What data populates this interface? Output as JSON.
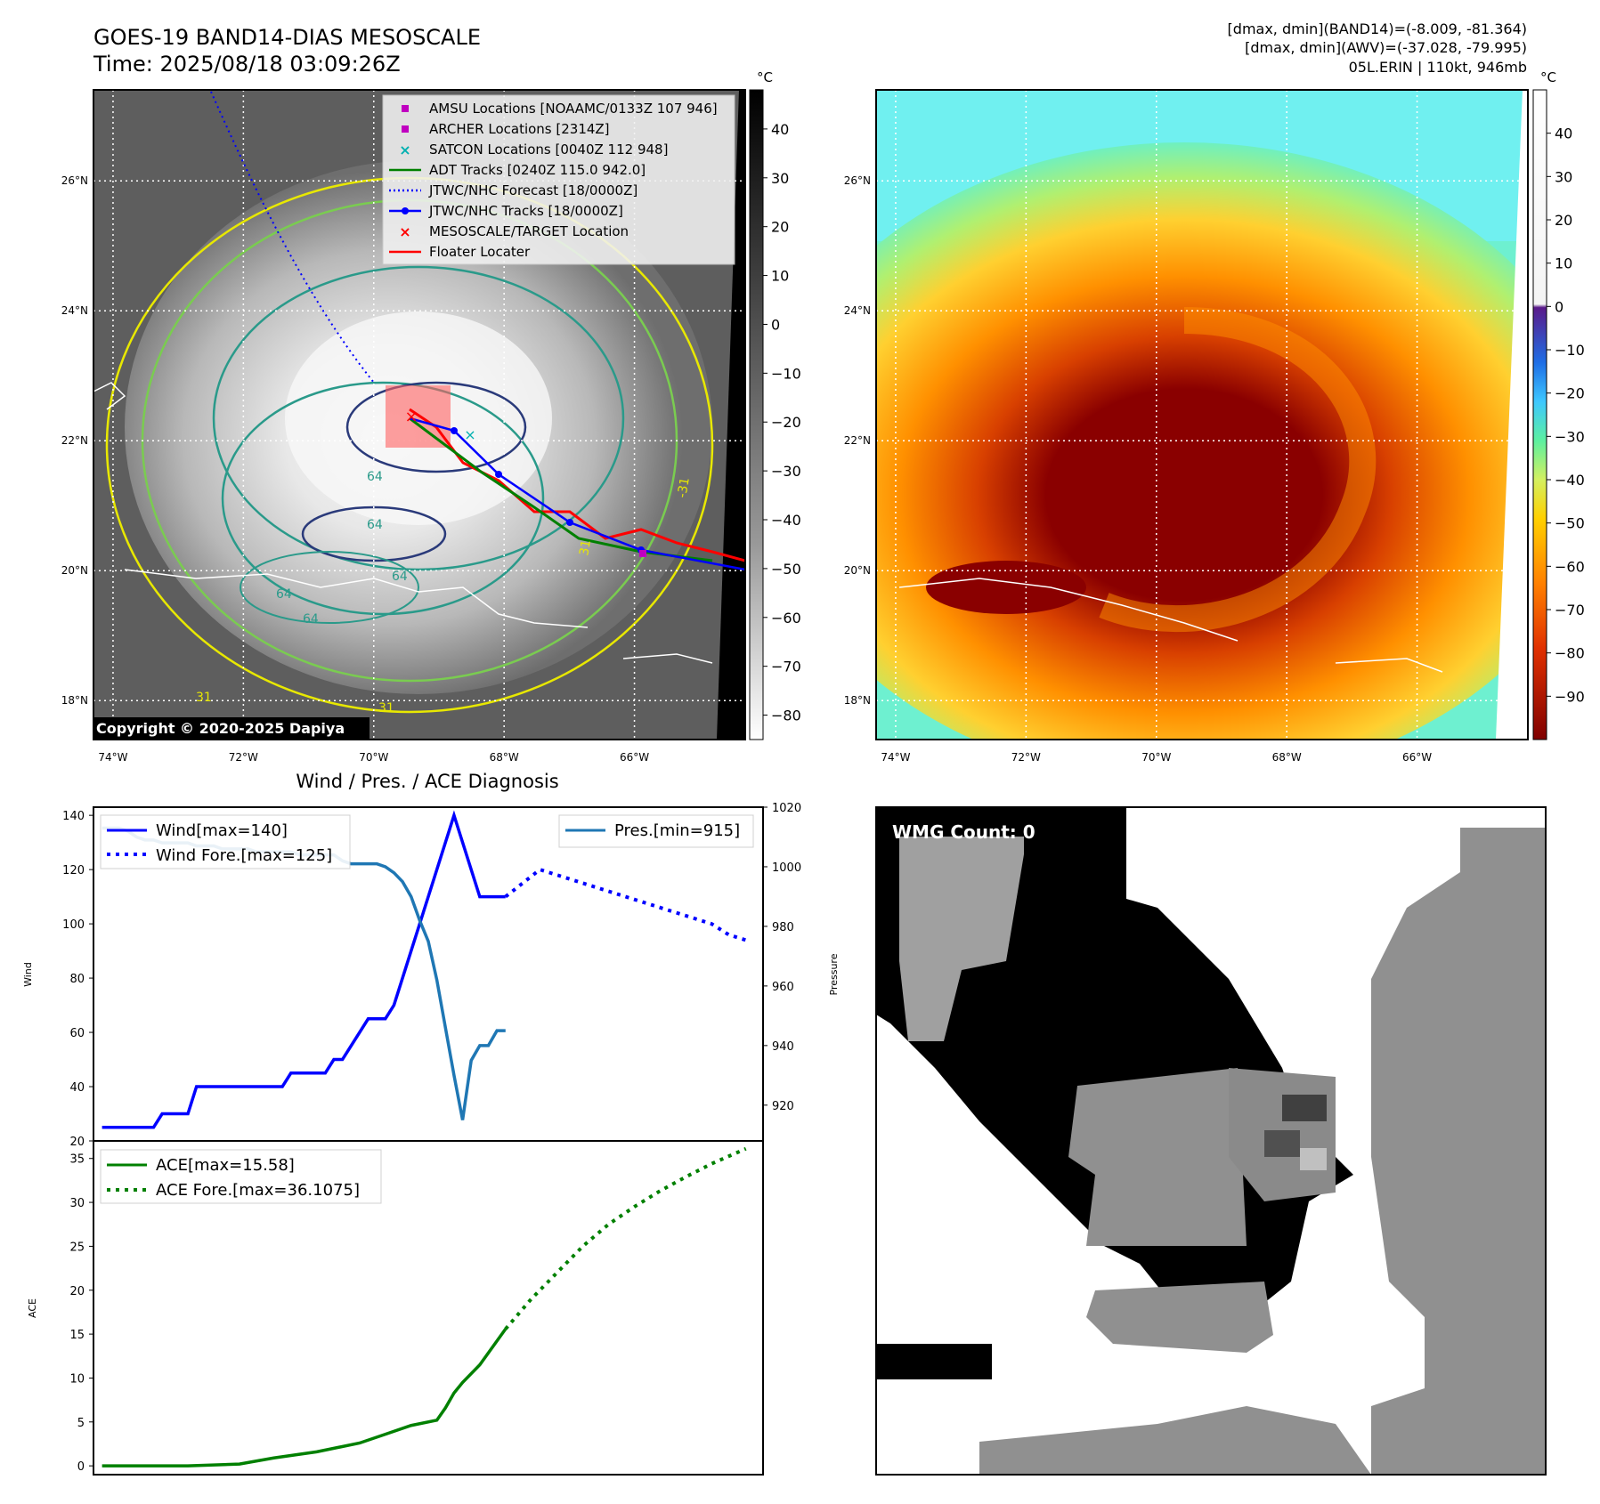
{
  "header": {
    "title_line1": "GOES-19 BAND14-DIAS MESOSCALE",
    "title_line2": "Time: 2025/08/18 03:09:26Z",
    "stats_line1": "[dmax, dmin](BAND14)=(-8.009, -81.364)",
    "stats_line2": "[dmax, dmin](AWV)=(-37.028, -79.995)",
    "stats_line3": "05L.ERIN | 110kt, 946mb"
  },
  "maps": {
    "lat_labels": [
      "26°N",
      "24°N",
      "22°N",
      "20°N",
      "18°N"
    ],
    "lat_values": [
      26,
      24,
      22,
      20,
      18
    ],
    "lon_labels": [
      "74°W",
      "72°W",
      "70°W",
      "68°W",
      "66°W"
    ],
    "lon_values": [
      -74,
      -72,
      -70,
      -68,
      -66
    ],
    "lon_range": [
      -74.3,
      -64.3
    ],
    "lat_range": [
      17.4,
      27.4
    ],
    "copyright": "Copyright © 2020-2025 Dapiya",
    "contour_labels": [
      "64",
      "64",
      "64",
      "64",
      "64",
      "31",
      "31",
      "31",
      "-31"
    ],
    "legend": [
      {
        "label": "AMSU Locations [NOAAMC/0133Z 107 946]",
        "symbol": "square",
        "color": "#c000c0"
      },
      {
        "label": "ARCHER Locations [2314Z]",
        "symbol": "square",
        "color": "#c000c0"
      },
      {
        "label": "SATCON Locations [0040Z 112 948]",
        "symbol": "x",
        "color": "#00b0b0"
      },
      {
        "label": "ADT Tracks [0240Z 115.0 942.0]",
        "symbol": "line",
        "color": "#008000"
      },
      {
        "label": "JTWC/NHC Forecast [18/0000Z]",
        "symbol": "dotted",
        "color": "#0000ff"
      },
      {
        "label": "JTWC/NHC Tracks [18/0000Z]",
        "symbol": "line-dot",
        "color": "#0000ff"
      },
      {
        "label": "MESOSCALE/TARGET Location",
        "symbol": "x",
        "color": "#ff0000"
      },
      {
        "label": "Floater Locater",
        "symbol": "line",
        "color": "#ff0000"
      }
    ],
    "colorbar_unit": "°C",
    "gray_colorbar_ticks": [
      "40",
      "30",
      "20",
      "10",
      "0",
      "−10",
      "−20",
      "−30",
      "−40",
      "−50",
      "−60",
      "−70",
      "−80"
    ],
    "gray_colorbar_values": [
      40,
      30,
      20,
      10,
      0,
      -10,
      -20,
      -30,
      -40,
      -50,
      -60,
      -70,
      -80
    ],
    "gray_colorbar_range": [
      -85,
      48
    ],
    "color_colorbar_ticks": [
      "40",
      "30",
      "20",
      "10",
      "0",
      "−10",
      "−20",
      "−30",
      "−40",
      "−50",
      "−60",
      "−70",
      "−80",
      "−90"
    ],
    "color_colorbar_values": [
      40,
      30,
      20,
      10,
      0,
      -10,
      -20,
      -30,
      -40,
      -50,
      -60,
      -70,
      -80,
      -90
    ],
    "color_colorbar_range": [
      -100,
      50
    ]
  },
  "diagnosis": {
    "title": "Wind / Pres. / ACE Diagnosis",
    "wmg_label": "WMG Count: 0"
  },
  "chart_data": [
    {
      "type": "line",
      "title": "Wind / Pres. / ACE Diagnosis",
      "ylabel": "Wind",
      "y2label": "Pressure",
      "ylim": [
        20,
        143
      ],
      "y2lim": [
        908,
        1020
      ],
      "yticks": [
        20,
        40,
        60,
        80,
        100,
        120,
        140
      ],
      "y2ticks": [
        920,
        940,
        960,
        980,
        1000,
        1020
      ],
      "series": [
        {
          "name": "Wind[max=140]",
          "axis": "left",
          "style": "solid",
          "color": "#0000ff",
          "x": [
            0,
            1,
            2,
            3,
            4,
            5,
            6,
            7,
            8,
            9,
            10,
            11,
            12,
            13,
            14,
            15,
            16,
            17,
            18,
            19,
            20,
            21,
            22,
            23,
            24,
            25,
            26,
            27,
            28,
            29,
            30,
            31,
            32,
            33,
            34,
            35,
            36,
            37,
            38,
            39,
            40,
            41,
            42,
            43,
            44,
            45,
            46,
            47
          ],
          "values": [
            25,
            25,
            25,
            25,
            25,
            25,
            25,
            30,
            30,
            30,
            30,
            40,
            40,
            40,
            40,
            40,
            40,
            40,
            40,
            40,
            40,
            40,
            45,
            45,
            45,
            45,
            45,
            50,
            50,
            55,
            60,
            65,
            65,
            65,
            70,
            80,
            90,
            100,
            110,
            120,
            130,
            140,
            130,
            120,
            110,
            110,
            110,
            110
          ]
        },
        {
          "name": "Wind Fore.[max=125]",
          "axis": "left",
          "style": "dotted",
          "color": "#0000ff",
          "x": [
            47,
            49,
            51,
            53,
            55,
            57,
            59,
            61,
            63,
            65,
            67,
            69,
            71,
            73,
            75
          ],
          "values": [
            110,
            115,
            120,
            118,
            116,
            114,
            112,
            110,
            108,
            106,
            104,
            102,
            100,
            96,
            94
          ]
        },
        {
          "name": "Pres.[min=915]",
          "axis": "right",
          "style": "solid",
          "color": "#1f77b4",
          "x": [
            0,
            1,
            2,
            3,
            4,
            5,
            6,
            7,
            8,
            9,
            10,
            11,
            12,
            13,
            14,
            15,
            16,
            17,
            18,
            19,
            20,
            21,
            22,
            23,
            24,
            25,
            26,
            27,
            28,
            29,
            30,
            31,
            32,
            33,
            34,
            35,
            36,
            37,
            38,
            39,
            40,
            41,
            42,
            43,
            44,
            45,
            46,
            47
          ],
          "values": [
            1013,
            1013,
            1013,
            1012,
            1010,
            1009,
            1009,
            1008,
            1008,
            1008,
            1008,
            1007,
            1007,
            1007,
            1006,
            1006,
            1006,
            1006,
            1005,
            1005,
            1005,
            1005,
            1005,
            1004,
            1004,
            1004,
            1004,
            1004,
            1002,
            1001,
            1001,
            1001,
            1001,
            1000,
            998,
            995,
            990,
            982,
            975,
            962,
            946,
            930,
            915,
            935,
            940,
            940,
            945,
            945
          ]
        }
      ]
    },
    {
      "type": "line",
      "ylabel": "ACE",
      "ylim": [
        -1,
        37
      ],
      "yticks": [
        0,
        5,
        10,
        15,
        20,
        25,
        30,
        35
      ],
      "series": [
        {
          "name": "ACE[max=15.58]",
          "style": "solid",
          "color": "#008000",
          "x": [
            0,
            5,
            10,
            16,
            20,
            25,
            30,
            33,
            36,
            39,
            40,
            41,
            42,
            44,
            47
          ],
          "values": [
            0,
            0,
            0,
            0.2,
            0.9,
            1.6,
            2.6,
            3.6,
            4.6,
            5.2,
            6.6,
            8.3,
            9.5,
            11.5,
            15.58
          ]
        },
        {
          "name": "ACE Fore.[max=36.1075]",
          "style": "dotted",
          "color": "#008000",
          "x": [
            47,
            50,
            53,
            56,
            59,
            62,
            65,
            68,
            71,
            75
          ],
          "values": [
            15.58,
            19,
            22,
            25,
            27.5,
            29.5,
            31.3,
            32.9,
            34.4,
            36.1075
          ]
        }
      ]
    }
  ]
}
